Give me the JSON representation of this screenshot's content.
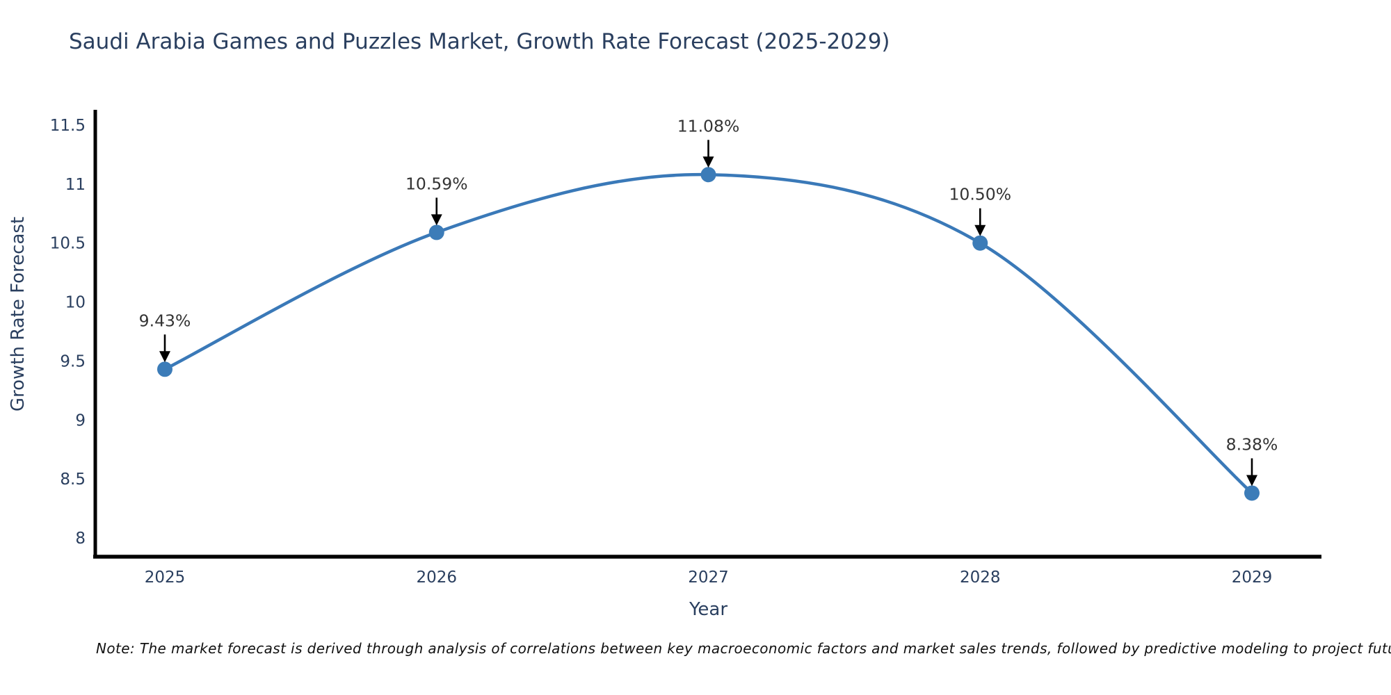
{
  "title": "Saudi Arabia Games and Puzzles Market, Growth Rate Forecast (2025-2029)",
  "note": "Note: The market forecast is derived through analysis of correlations between key macroeconomic factors and market sales trends, followed by predictive modeling to project future sales",
  "chart_data": {
    "type": "line",
    "title": "Saudi Arabia Games and Puzzles Market, Growth Rate Forecast (2025-2029)",
    "xlabel": "Year",
    "ylabel": "Growth Rate Forecast",
    "line_shape": "spline",
    "grid": false,
    "legend": "none",
    "categories": [
      "2025",
      "2026",
      "2027",
      "2028",
      "2029"
    ],
    "x": [
      2025,
      2026,
      2027,
      2028,
      2029
    ],
    "values": [
      9.43,
      10.59,
      11.08,
      10.5,
      8.38
    ],
    "point_labels": [
      "9.43%",
      "10.59%",
      "11.08%",
      "10.50%",
      "8.38%"
    ],
    "ylim": [
      7.84,
      11.62
    ],
    "yticks": [
      8,
      8.5,
      9,
      9.5,
      10,
      10.5,
      11,
      11.5
    ],
    "ytick_labels": [
      "8",
      "8.5",
      "9",
      "9.5",
      "10",
      "10.5",
      "11",
      "11.5"
    ],
    "xtick_labels": [
      "2025",
      "2026",
      "2027",
      "2028",
      "2029"
    ],
    "colors": {
      "line": "#3a79b8",
      "marker": "#3c7cb8",
      "annotation_text": "#333333",
      "annotation_arrow": "#000000",
      "axis_line": "#000000",
      "tick_text": "#2a3f5f",
      "axis_title_text": "#2a3f5f",
      "title_text": "#2a3f5f",
      "background": "#ffffff"
    }
  }
}
